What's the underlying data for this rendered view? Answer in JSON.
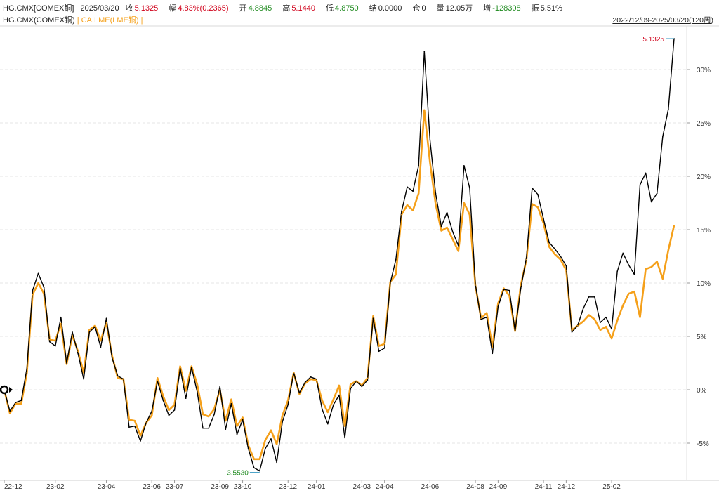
{
  "header": {
    "symbol": "HG.CMX[COMEX铜]",
    "date": "2025/03/20",
    "close_label": "收",
    "close": "5.1325",
    "change_label": "幅",
    "change": "4.83%(0.2365)",
    "open_label": "开",
    "open": "4.8845",
    "high_label": "高",
    "high": "5.1440",
    "low_label": "低",
    "low": "4.8750",
    "settle_label": "结",
    "settle": "0.0000",
    "oi_label": "仓",
    "oi": "0",
    "volume_label": "量",
    "volume": "12.05万",
    "increase_label": "增",
    "increase": "-128308",
    "amplitude_label": "振",
    "amplitude": "5.51%"
  },
  "legend": {
    "main": "HG.CMX(COMEX铜)",
    "sep1": " | ",
    "compare": "CA.LME(LME铜)",
    "sep2": " |"
  },
  "range_label": "2022/12/09-2025/03/20(120周)",
  "colors": {
    "main_series": "#000000",
    "compare_series": "#f5a01a",
    "up": "#d0021b",
    "down": "#1e8a1e"
  },
  "chart_data": {
    "type": "line",
    "ylim": [
      -8,
      34
    ],
    "y_ticks": [
      -5,
      0,
      5,
      10,
      15,
      20,
      25,
      30
    ],
    "y_tick_labels": [
      "-5%",
      "0%",
      "5%",
      "10%",
      "15%",
      "20%",
      "25%",
      "30%"
    ],
    "x_tick_labels": [
      "22-12",
      "23-02",
      "23-04",
      "23-06",
      "23-07",
      "23-09",
      "23-10",
      "23-12",
      "24-01",
      "24-03",
      "24-04",
      "24-06",
      "24-08",
      "24-09",
      "24-11",
      "24-12",
      "25-02"
    ],
    "x_tick_index": [
      0,
      9,
      18,
      26,
      30,
      38,
      42,
      50,
      55,
      63,
      67,
      75,
      83,
      87,
      95,
      99,
      107
    ],
    "series": [
      {
        "name": "HG.CMX(COMEX铜)",
        "values": [
          0,
          -2,
          -1.2,
          -1,
          2,
          9.3,
          10.9,
          9.6,
          4.5,
          4.1,
          6.8,
          2.5,
          5.4,
          3.4,
          1,
          5.4,
          5.9,
          4,
          6.7,
          3,
          1.3,
          1,
          -3.5,
          -3.4,
          -4.8,
          -3.1,
          -2,
          0.8,
          -1,
          -2.4,
          -1.9,
          2,
          -0.8,
          2.1,
          -0.2,
          -3.6,
          -3.6,
          -2.3,
          0.3,
          -3.7,
          -1.3,
          -4.2,
          -2.8,
          -5.5,
          -7.3,
          -7.6,
          -5.5,
          -4.6,
          -6.8,
          -3,
          -1.4,
          1.6,
          -0.3,
          0.7,
          1.2,
          1,
          -1.8,
          -3.2,
          -1.4,
          -0.5,
          -4.5,
          0.1,
          0.8,
          0.3,
          0.9,
          6.7,
          3.6,
          3.9,
          10,
          12.2,
          16.7,
          19,
          18.6,
          21,
          31.7,
          23.4,
          18.4,
          15.3,
          16.6,
          14.8,
          13.5,
          21,
          18.9,
          9.9,
          6.6,
          6.8,
          3.4,
          7.8,
          9.4,
          9.3,
          5.5,
          9.5,
          12.4,
          18.9,
          18.3,
          16,
          13.8,
          13.2,
          12.5,
          11.6,
          5.4,
          6,
          7.6,
          8.7,
          8.7,
          6.3,
          6.8,
          5.7,
          11.1,
          12.8,
          11.7,
          10.8,
          19.2,
          20.3,
          17.6,
          18.4,
          23.7,
          26.3,
          32.9
        ],
        "last_label": "5.1325",
        "min_label": "3.5530"
      },
      {
        "name": "CA.LME(LME铜)",
        "values": [
          0,
          -2.2,
          -1.3,
          -1.3,
          1.6,
          8.9,
          10,
          9,
          4.7,
          4.6,
          6.2,
          2.4,
          5.1,
          3.6,
          1.6,
          5.6,
          6,
          4.6,
          6.3,
          3.2,
          1.1,
          1,
          -2.8,
          -2.9,
          -4.3,
          -3.1,
          -2.4,
          1.1,
          -0.6,
          -1.9,
          -1.4,
          2.2,
          -0.1,
          2.2,
          0.5,
          -2.3,
          -2.5,
          -1.8,
          0,
          -2.9,
          -0.9,
          -3.4,
          -2.6,
          -5.2,
          -6.5,
          -6.5,
          -4.7,
          -3.8,
          -5.1,
          -2.4,
          -1,
          1.6,
          -0.4,
          0.6,
          1,
          0.9,
          -1,
          -2.1,
          -0.9,
          0.4,
          -3.4,
          0.5,
          0.8,
          0.4,
          1.1,
          6.9,
          4.1,
          4.3,
          10.1,
          10.8,
          16.4,
          17.3,
          16.8,
          18.4,
          26.2,
          21.3,
          17.4,
          14.9,
          15.2,
          14.1,
          13,
          17.5,
          16.4,
          9.8,
          6.7,
          7.2,
          4,
          8.1,
          9.5,
          8.8,
          5.5,
          9.8,
          12.2,
          17.4,
          17.1,
          15.6,
          13.4,
          12.7,
          12.2,
          11.2,
          5.6,
          6,
          6.4,
          7,
          6.6,
          5.6,
          5.9,
          4.8,
          6.5,
          7.9,
          9,
          9.2,
          6.8,
          11.3,
          11.5,
          12,
          10.4,
          13.1,
          15.4
        ]
      }
    ]
  }
}
